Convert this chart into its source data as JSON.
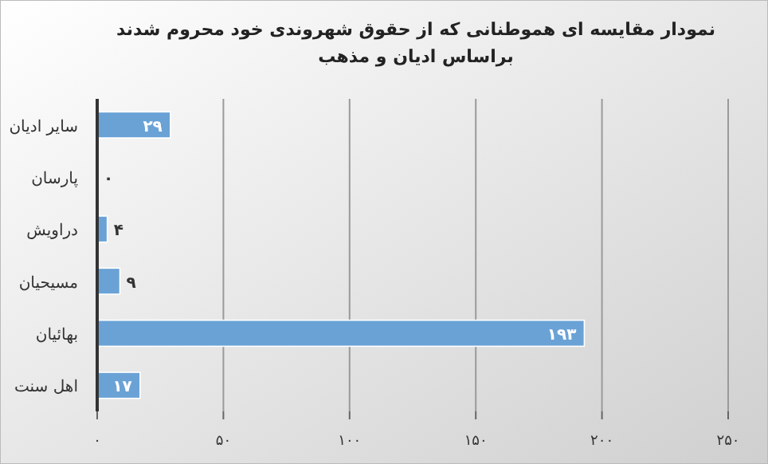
{
  "chart_data": {
    "type": "bar",
    "orientation": "horizontal",
    "title": "نمودار مقایسه ای هموطنانی که از حقوق شهروندی خود محروم  شدند\nبراساس ادیان و مذهب",
    "categories": [
      "سایر ادیان",
      "پارسان",
      "دراویش",
      "مسیحیان",
      "بهائیان",
      "اهل سنت"
    ],
    "values": [
      29,
      0,
      4,
      9,
      193,
      17
    ],
    "value_labels": [
      "۲۹",
      "۰",
      "۴",
      "۹",
      "۱۹۳",
      "۱۷"
    ],
    "color": "#6aa2d6",
    "xlim": [
      0,
      250
    ],
    "xticks": [
      {
        "value": 0,
        "label": "۰"
      },
      {
        "value": 50,
        "label": "۵۰"
      },
      {
        "value": 100,
        "label": "۱۰۰"
      },
      {
        "value": 150,
        "label": "۱۵۰"
      },
      {
        "value": 200,
        "label": "۲۰۰"
      },
      {
        "value": 250,
        "label": "۲۵۰"
      }
    ],
    "grid": "x"
  }
}
